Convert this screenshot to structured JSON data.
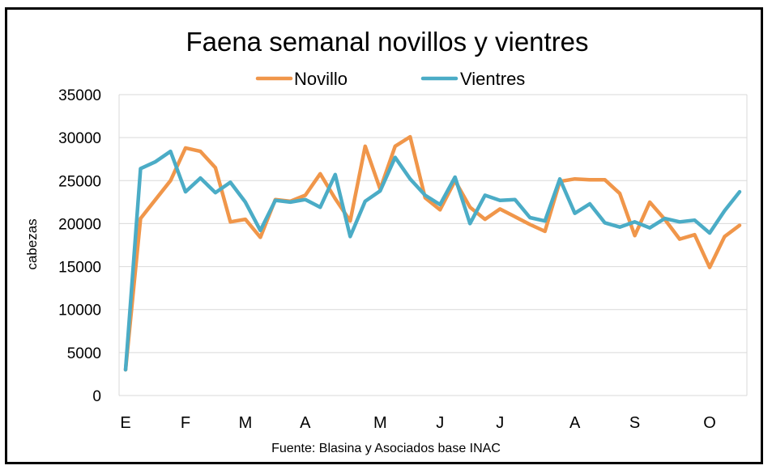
{
  "chart_data": {
    "type": "line",
    "title": "Faena semanal novillos y vientres",
    "xlabel": "",
    "ylabel": "cabezas",
    "ylim": [
      0,
      35000
    ],
    "yticks": [
      0,
      5000,
      10000,
      15000,
      20000,
      25000,
      30000,
      35000
    ],
    "x_tick_labels": [
      "E",
      "F",
      "M",
      "A",
      "M",
      "J",
      "J",
      "A",
      "S",
      "O"
    ],
    "x_tick_positions": [
      0,
      4,
      8,
      12,
      17,
      21,
      25,
      30,
      34,
      39
    ],
    "grid": true,
    "legend_position": "top-center",
    "x": [
      0,
      1,
      2,
      3,
      4,
      5,
      6,
      7,
      8,
      9,
      10,
      11,
      12,
      13,
      14,
      15,
      16,
      17,
      18,
      19,
      20,
      21,
      22,
      23,
      24,
      25,
      26,
      27,
      28,
      29,
      30,
      31,
      32,
      33,
      34,
      35,
      36,
      37,
      38,
      39,
      40,
      41
    ],
    "series": [
      {
        "name": "Novillo",
        "color": "#F0964A",
        "values": [
          3000,
          20600,
          22800,
          25000,
          28800,
          28400,
          26500,
          20200,
          20500,
          18400,
          22800,
          22600,
          23300,
          25800,
          22900,
          20300,
          29000,
          24000,
          29000,
          30100,
          23000,
          21600,
          25000,
          21900,
          20500,
          21700,
          20800,
          19900,
          19100,
          24900,
          25200,
          25100,
          25100,
          23500,
          18600,
          22500,
          20500,
          18200,
          18700,
          14900,
          18500,
          19800
        ]
      },
      {
        "name": "Vientres",
        "color": "#4BACC6",
        "values": [
          3000,
          26400,
          27200,
          28400,
          23700,
          25300,
          23600,
          24800,
          22500,
          19200,
          22700,
          22500,
          22800,
          21900,
          25700,
          18500,
          22600,
          23800,
          27700,
          25200,
          23300,
          22200,
          25400,
          20000,
          23300,
          22700,
          22800,
          20700,
          20300,
          25200,
          21200,
          22300,
          20100,
          19600,
          20200,
          19500,
          20600,
          20200,
          20400,
          18900,
          21500,
          23700
        ]
      }
    ]
  },
  "source_note": "Fuente: Blasina y Asociados base INAC"
}
